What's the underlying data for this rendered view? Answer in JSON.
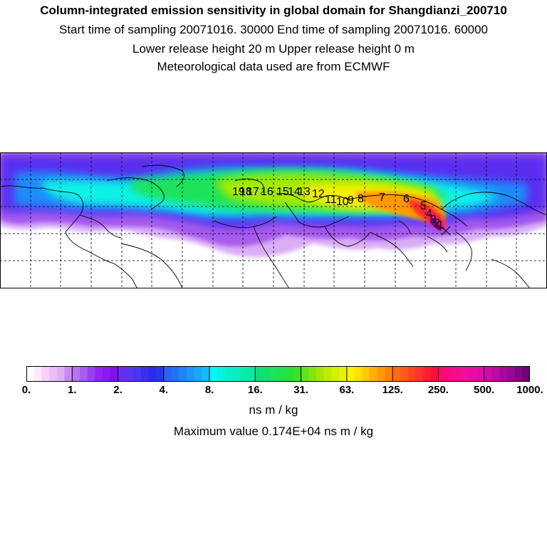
{
  "header": {
    "title": "Column-integrated emission sensitivity in global domain for Shangdianzi_200710",
    "sampling": "Start time of sampling 20071016. 30000     End time of sampling 20071016. 60000",
    "release": "Lower release height   20 m          Upper release height    0 m",
    "met": "Meteorological data used are from ECMWF"
  },
  "map": {
    "markers": [
      "19",
      "18",
      "17",
      "16",
      "15",
      "14",
      "13",
      "12",
      "11",
      "10",
      "9",
      "8",
      "7",
      "6",
      "5",
      "4",
      "3",
      "2",
      "1"
    ]
  },
  "colorbar": {
    "ticks": [
      "0.",
      "1.",
      "2.",
      "4.",
      "8.",
      "16.",
      "31.",
      "63.",
      "125.",
      "250.",
      "500.",
      "1000."
    ],
    "colors": [
      "#ffffff",
      "#fbe9ff",
      "#f4d2fc",
      "#eabcf9",
      "#ddb0f5",
      "#c98af0",
      "#b873ee",
      "#a65cec",
      "#9a3ff0",
      "#8f26f3",
      "#8a1bf2",
      "#7d10f2",
      "#6c2bf0",
      "#5a35f0",
      "#4a35f0",
      "#3930ef",
      "#2b2cf0",
      "#2339f0",
      "#2a63f6",
      "#1f73fa",
      "#1d84fb",
      "#1e95fc",
      "#17a8fc",
      "#13bbfa",
      "#07f6f2",
      "#05f4e0",
      "#04f0cf",
      "#07eec1",
      "#08ebb0",
      "#0ae8a3",
      "#08e07c",
      "#12e06b",
      "#1be35c",
      "#22e14a",
      "#2ae03a",
      "#3be02b",
      "#60e41c",
      "#83e60e",
      "#a4e905",
      "#beed00",
      "#d3f000",
      "#e4f400",
      "#f8f400",
      "#ffe000",
      "#ffca00",
      "#ffb000",
      "#ff9a00",
      "#ff8400",
      "#ff6a12",
      "#ff5a1c",
      "#ff4524",
      "#ff322c",
      "#ff1d33",
      "#ff0c40",
      "#ff0a6e",
      "#fc0a82",
      "#f70c8e",
      "#f00e9a",
      "#e80ea4",
      "#df0ca9",
      "#cf0ba8",
      "#bd0aa3",
      "#aa089c",
      "#970793",
      "#810687",
      "#6a0578"
    ],
    "unit": "ns m / kg",
    "max_text": "Maximum value  0.174E+04 ns m / kg"
  }
}
